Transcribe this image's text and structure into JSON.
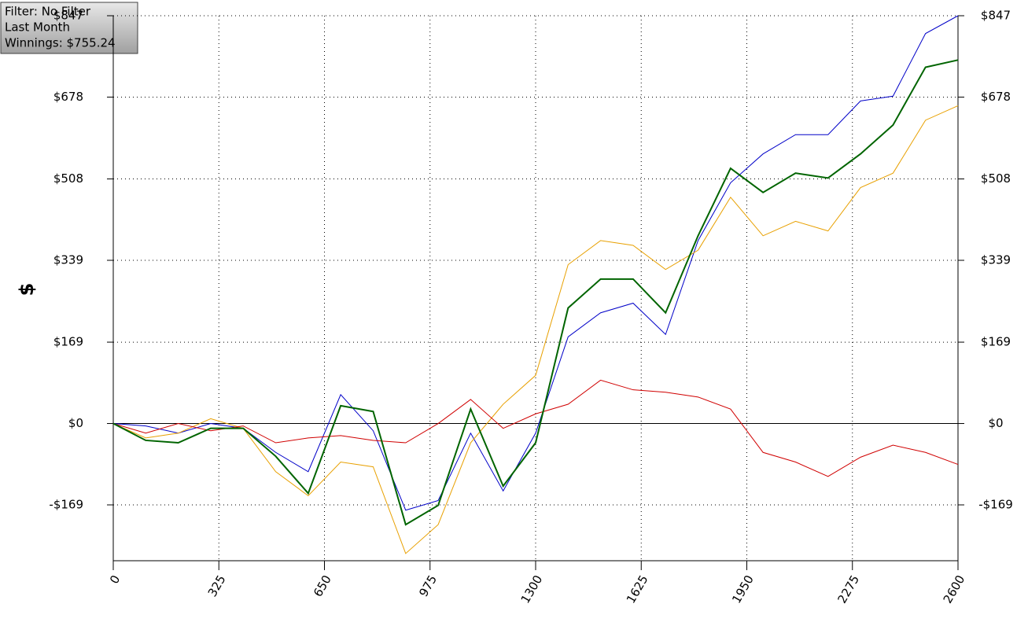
{
  "chart_data": {
    "type": "line",
    "info": [
      "Filter: No Filter",
      "Last Month",
      "Winnings: $755.24"
    ],
    "ylabel": "$",
    "x": [
      0,
      100,
      200,
      300,
      400,
      500,
      600,
      700,
      800,
      900,
      1000,
      1100,
      1200,
      1300,
      1400,
      1500,
      1600,
      1700,
      1800,
      1900,
      2000,
      2100,
      2200,
      2300,
      2400,
      2500,
      2600
    ],
    "series": [
      {
        "color": "#0000c8",
        "values": [
          0,
          -5,
          -20,
          0,
          -10,
          -60,
          -100,
          60,
          -15,
          -180,
          -160,
          -20,
          -140,
          -20,
          180,
          230,
          250,
          185,
          380,
          500,
          560,
          600,
          600,
          670,
          680,
          810,
          847
        ]
      },
      {
        "color": "#e8a000",
        "values": [
          0,
          -30,
          -20,
          10,
          -10,
          -100,
          -150,
          -80,
          -90,
          -270,
          -210,
          -40,
          40,
          100,
          330,
          380,
          370,
          320,
          360,
          470,
          390,
          420,
          400,
          490,
          520,
          630,
          660
        ]
      },
      {
        "color": "#d00000",
        "values": [
          0,
          -20,
          0,
          -15,
          -5,
          -40,
          -30,
          -25,
          -35,
          -40,
          0,
          50,
          -10,
          20,
          40,
          90,
          70,
          65,
          55,
          30,
          -60,
          -80,
          -110,
          -70,
          -45,
          -60,
          -85
        ]
      },
      {
        "color": "#006400",
        "values": [
          0,
          -35,
          -40,
          -10,
          -10,
          -68,
          -145,
          37,
          25,
          -210,
          -170,
          30,
          -130,
          -40,
          240,
          300,
          300,
          230,
          390,
          530,
          480,
          520,
          510,
          560,
          620,
          740,
          755
        ]
      }
    ],
    "xlim": [
      0,
      2600
    ],
    "xticks": [
      0,
      325,
      650,
      975,
      1300,
      1625,
      1950,
      2275,
      2600
    ],
    "ylim": [
      -285,
      847
    ],
    "yticks": [
      {
        "value": -169,
        "label": "-$169"
      },
      {
        "value": 0,
        "label": "$0"
      },
      {
        "value": 169,
        "label": "$169"
      },
      {
        "value": 339,
        "label": "$339"
      },
      {
        "value": 508,
        "label": "$508"
      },
      {
        "value": 678,
        "label": "$678"
      },
      {
        "value": 847,
        "label": "$847"
      }
    ],
    "grid": true
  }
}
